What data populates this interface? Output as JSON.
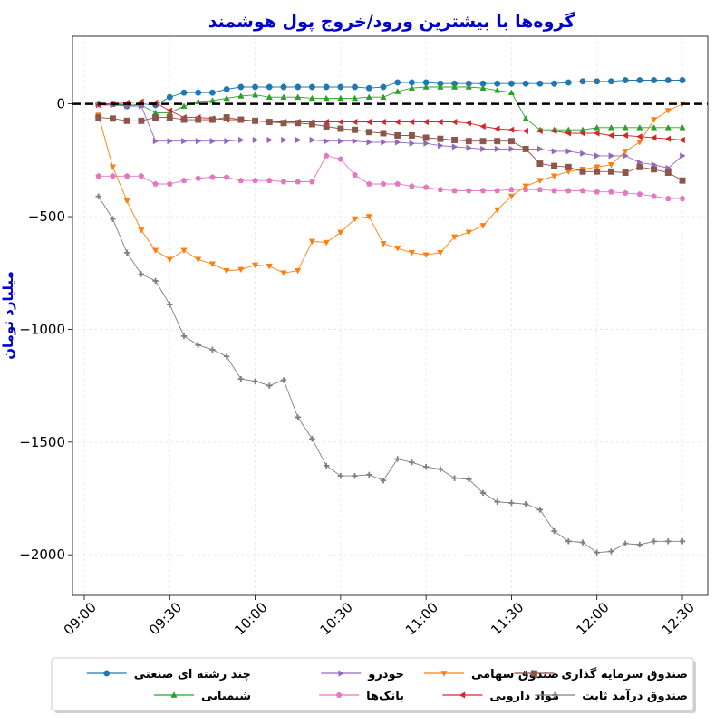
{
  "chart_data": {
    "type": "line",
    "title": "گروه‌ها با بیشترین ورود/خروج پول هوشمند",
    "ylabel": "میلیارد تومان",
    "xlabel": "",
    "title_color": "#0000cc",
    "ylabel_color": "#0000cc",
    "x": [
      "09:05",
      "09:10",
      "09:15",
      "09:20",
      "09:25",
      "09:30",
      "09:35",
      "09:40",
      "09:45",
      "09:50",
      "09:55",
      "10:00",
      "10:05",
      "10:10",
      "10:15",
      "10:20",
      "10:25",
      "10:30",
      "10:35",
      "10:40",
      "10:45",
      "10:50",
      "10:55",
      "11:00",
      "11:05",
      "11:10",
      "11:15",
      "11:20",
      "11:25",
      "11:30",
      "11:35",
      "11:40",
      "11:45",
      "11:50",
      "11:55",
      "12:00",
      "12:05",
      "12:10",
      "12:15",
      "12:20",
      "12:25",
      "12:30"
    ],
    "x_ticks": [
      "09:00",
      "09:30",
      "10:00",
      "10:30",
      "11:00",
      "11:30",
      "12:00",
      "12:30"
    ],
    "y_ticks": [
      0,
      -500,
      -1000,
      -1500,
      -2000
    ],
    "ylim": [
      -2180,
      300
    ],
    "xlim": [
      "09:00",
      "12:32"
    ],
    "reference_line": 0,
    "grid": true,
    "legend_position": "bottom, outside plot",
    "series": [
      {
        "name": "چند رشته ای صنعتی",
        "color": "#1f77b4",
        "marker": "circle",
        "values": [
          0,
          0,
          -10,
          0,
          -5,
          30,
          50,
          50,
          50,
          65,
          75,
          75,
          75,
          75,
          75,
          75,
          75,
          75,
          75,
          70,
          75,
          95,
          95,
          95,
          90,
          90,
          90,
          90,
          90,
          90,
          90,
          90,
          90,
          95,
          100,
          100,
          100,
          105,
          105,
          105,
          105,
          105
        ]
      },
      {
        "name": "شیمیایی",
        "color": "#2ca02c",
        "marker": "triangle-up",
        "values": [
          0,
          0,
          -5,
          -5,
          -40,
          -40,
          -10,
          10,
          15,
          25,
          35,
          40,
          30,
          30,
          30,
          25,
          25,
          25,
          25,
          30,
          30,
          55,
          70,
          75,
          75,
          75,
          75,
          70,
          60,
          50,
          -65,
          -115,
          -115,
          -115,
          -115,
          -105,
          -105,
          -105,
          -105,
          -105,
          -105,
          -105
        ]
      },
      {
        "name": "خودرو",
        "color": "#9467bd",
        "marker": "triangle-right",
        "values": [
          -5,
          -5,
          -10,
          -10,
          -165,
          -165,
          -165,
          -165,
          -165,
          -165,
          -160,
          -160,
          -160,
          -160,
          -160,
          -160,
          -165,
          -165,
          -165,
          -170,
          -170,
          -170,
          -175,
          -175,
          -185,
          -190,
          -195,
          -200,
          -200,
          -200,
          -200,
          -200,
          -210,
          -210,
          -220,
          -230,
          -230,
          -230,
          -260,
          -270,
          -285,
          -230
        ]
      },
      {
        "name": "بانک‌ها",
        "color": "#e377c2",
        "marker": "pentagon",
        "values": [
          -320,
          -320,
          -320,
          -320,
          -355,
          -355,
          -340,
          -330,
          -325,
          -325,
          -340,
          -340,
          -340,
          -345,
          -345,
          -345,
          -230,
          -245,
          -315,
          -355,
          -355,
          -355,
          -365,
          -370,
          -380,
          -385,
          -385,
          -385,
          -385,
          -380,
          -380,
          -380,
          -385,
          -385,
          -385,
          -390,
          -390,
          -395,
          -400,
          -410,
          -420,
          -420
        ]
      },
      {
        "name": "صندوق سهامی",
        "color": "#ff7f0e",
        "marker": "triangle-down",
        "values": [
          -50,
          -280,
          -430,
          -560,
          -650,
          -690,
          -650,
          -690,
          -710,
          -740,
          -735,
          -715,
          -720,
          -750,
          -740,
          -610,
          -615,
          -570,
          -510,
          -500,
          -620,
          -640,
          -660,
          -670,
          -660,
          -590,
          -570,
          -540,
          -470,
          -410,
          -365,
          -340,
          -320,
          -300,
          -290,
          -280,
          -270,
          -210,
          -170,
          -70,
          -30,
          0
        ]
      },
      {
        "name": "مواد دارویی",
        "color": "#d62728",
        "marker": "triangle-left",
        "values": [
          -5,
          0,
          5,
          10,
          5,
          -30,
          -60,
          -60,
          -65,
          -70,
          -70,
          -75,
          -80,
          -80,
          -80,
          -80,
          -80,
          -80,
          -80,
          -80,
          -80,
          -80,
          -80,
          -80,
          -80,
          -80,
          -85,
          -100,
          -110,
          -115,
          -120,
          -120,
          -120,
          -130,
          -130,
          -130,
          -140,
          -140,
          -145,
          -150,
          -155,
          -160
        ]
      },
      {
        "name": "صندوق سرمایه گذاری",
        "color": "#8c564b",
        "marker": "square",
        "values": [
          -60,
          -65,
          -75,
          -75,
          -60,
          -60,
          -70,
          -70,
          -70,
          -60,
          -70,
          -75,
          -80,
          -85,
          -85,
          -90,
          -100,
          -110,
          -115,
          -125,
          -130,
          -140,
          -140,
          -150,
          -155,
          -160,
          -165,
          -165,
          -165,
          -165,
          -200,
          -265,
          -275,
          -280,
          -300,
          -300,
          -300,
          -305,
          -280,
          -290,
          -305,
          -340
        ]
      },
      {
        "name": "صندوق درآمد ثابت",
        "color": "#7f7f7f",
        "marker": "plus",
        "values": [
          -410,
          -510,
          -660,
          -755,
          -785,
          -890,
          -1030,
          -1070,
          -1090,
          -1120,
          -1220,
          -1230,
          -1250,
          -1225,
          -1390,
          -1485,
          -1605,
          -1650,
          -1650,
          -1645,
          -1670,
          -1575,
          -1590,
          -1610,
          -1620,
          -1660,
          -1665,
          -1725,
          -1765,
          -1770,
          -1775,
          -1800,
          -1895,
          -1940,
          -1945,
          -1990,
          -1985,
          -1950,
          -1955,
          -1940,
          -1940,
          -1940
        ]
      }
    ]
  }
}
